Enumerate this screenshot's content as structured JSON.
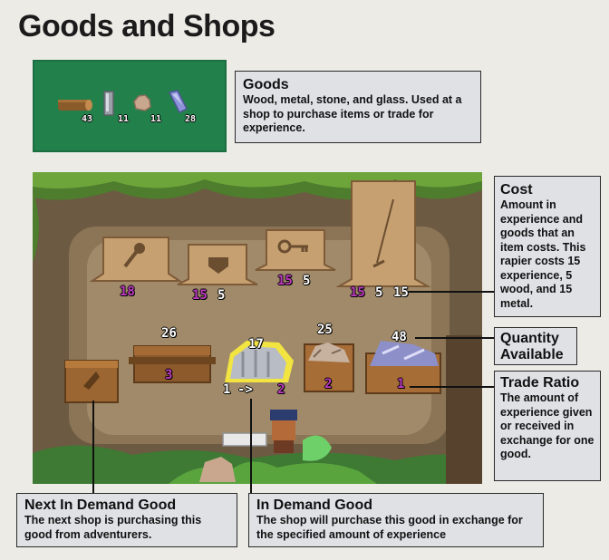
{
  "title": "Goods and Shops",
  "goods_panel": {
    "items": [
      {
        "icon": "wood-log-icon",
        "count": "43"
      },
      {
        "icon": "metal-bar-icon",
        "count": "11"
      },
      {
        "icon": "stone-icon",
        "count": "11"
      },
      {
        "icon": "glass-shard-icon",
        "count": "28"
      }
    ]
  },
  "callouts": {
    "goods": {
      "title": "Goods",
      "body": "Wood, metal, stone, and glass. Used at a shop to purchase items or trade for experience."
    },
    "cost": {
      "title": "Cost",
      "body": "Amount in experience and goods that an item costs. This rapier costs 15 experience, 5 wood, and 15 metal."
    },
    "quantity": {
      "title": "Quantity Available"
    },
    "trade_ratio": {
      "title": "Trade Ratio",
      "body": "The amount of experience given or received in exchange for one good."
    },
    "next_demand": {
      "title": "Next In Demand Good",
      "body": "The next shop is purchasing this good from adventurers."
    },
    "in_demand": {
      "title": "In Demand Good",
      "body": "The shop will purchase this good in exchange for the specified amount of experience"
    }
  },
  "scene": {
    "shop_items": [
      {
        "icon": "club-icon",
        "cost_xp": "18",
        "cost_goods": ""
      },
      {
        "icon": "shield-icon",
        "cost_xp": "15",
        "cost_goods": "5"
      },
      {
        "icon": "key-icon",
        "cost_xp": "15",
        "cost_goods": "5"
      },
      {
        "icon": "rapier-icon",
        "cost_xp": "15",
        "cost_goods": "5",
        "cost_metal": "15"
      }
    ],
    "stalls": [
      {
        "name": "wood",
        "quantity": "26",
        "ratio": "3"
      },
      {
        "name": "metal",
        "quantity": "17",
        "ratio_left": "1",
        "arrow": "->",
        "ratio_right": "2"
      },
      {
        "name": "stone",
        "quantity": "25",
        "ratio": "2"
      },
      {
        "name": "glass",
        "quantity": "48",
        "ratio": "1"
      }
    ]
  }
}
